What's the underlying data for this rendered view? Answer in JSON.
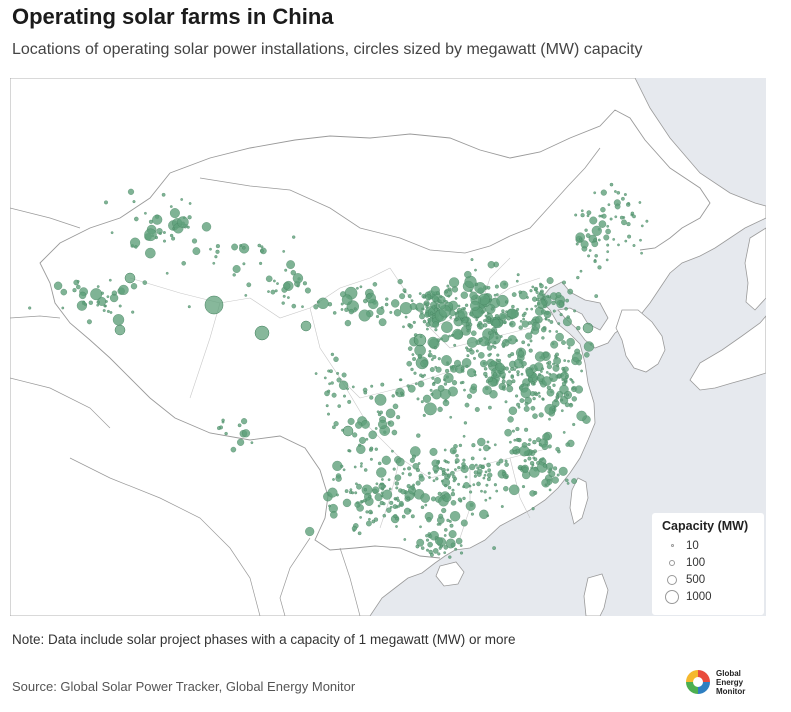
{
  "header": {
    "title": "Operating solar farms in China",
    "subtitle": "Locations of operating solar power installations, circles sized by megawatt (MW) capacity"
  },
  "map": {
    "colors": {
      "land": "#ffffff",
      "sea": "#e6e9ee",
      "border": "#9a9a9a",
      "province_border": "#c8c8c8",
      "point_fill": "#5fa07a",
      "point_stroke": "#3f7d5a"
    }
  },
  "legend": {
    "title": "Capacity (MW)",
    "items": [
      {
        "label": "10",
        "value": 10
      },
      {
        "label": "100",
        "value": 100
      },
      {
        "label": "500",
        "value": 500
      },
      {
        "label": "1000",
        "value": 1000
      }
    ]
  },
  "footer": {
    "note": "Note: Data include solar project phases with a capacity of 1 megawatt (MW) or more",
    "source": "Source: Global Solar Power Tracker, Global Energy Monitor"
  },
  "logo": {
    "lines": [
      "Global",
      "Energy",
      "Monitor"
    ]
  }
}
